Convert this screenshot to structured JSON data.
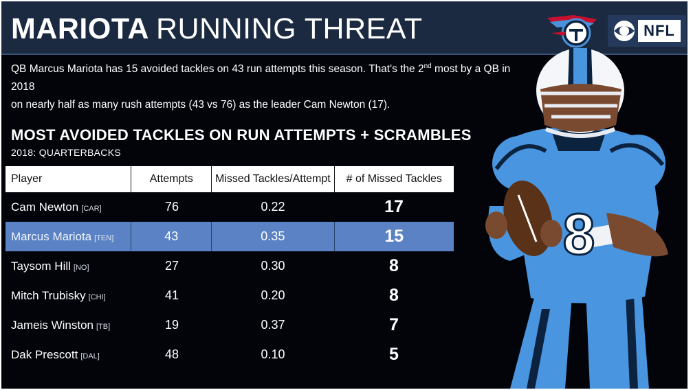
{
  "header": {
    "title_bold": "MARIOTA",
    "title_light": "RUNNING THREAT",
    "nfl_text": "NFL"
  },
  "subtitle": {
    "line1_a": "QB Marcus Mariota has 15 avoided tackles on 43 run attempts this season. That's the 2",
    "line1_sup": "nd",
    "line1_b": " most by a QB in 2018",
    "line2": "on nearly half as many rush attempts (43 vs 76) as the leader Cam Newton (17)."
  },
  "section": {
    "title": "MOST AVOIDED TACKLES ON RUN ATTEMPTS + SCRAMBLES",
    "subtitle": "2018: QUARTERBACKS"
  },
  "table": {
    "headers": [
      "Player",
      "Attempts",
      "Missed Tackles/Attempt",
      "# of Missed Tackles"
    ],
    "rows": [
      {
        "player": "Cam Newton",
        "team": "[CAR]",
        "attempts": "76",
        "rate": "0.22",
        "missed": "17"
      },
      {
        "player": "Marcus Mariota",
        "team": "[TEN]",
        "attempts": "43",
        "rate": "0.35",
        "missed": "15"
      },
      {
        "player": "Taysom Hill",
        "team": "[NO]",
        "attempts": "27",
        "rate": "0.30",
        "missed": "8"
      },
      {
        "player": "Mitch Trubisky",
        "team": "[CHI]",
        "attempts": "41",
        "rate": "0.20",
        "missed": "8"
      },
      {
        "player": "Jameis Winston",
        "team": "[TB]",
        "attempts": "19",
        "rate": "0.37",
        "missed": "7"
      },
      {
        "player": "Dak Prescott",
        "team": "[DAL]",
        "attempts": "48",
        "rate": "0.10",
        "missed": "5"
      }
    ]
  },
  "colors": {
    "background": "#02040a",
    "header": "#1b2a40",
    "highlight_row": "#5a82c4",
    "jersey_blue": "#4a95e0"
  },
  "icons": [
    "titans-logo-icon",
    "cbs-eye-icon",
    "nfl-logo-icon"
  ]
}
